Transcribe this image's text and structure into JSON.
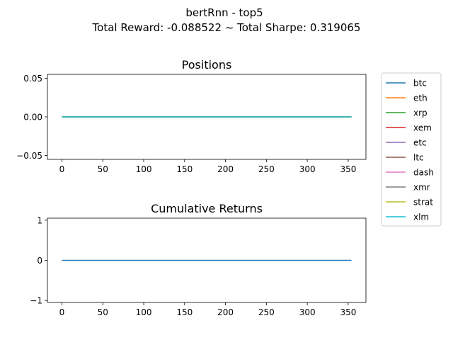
{
  "figure": {
    "title_line1": "bertRnn - top5",
    "title_line2": "Total Reward: -0.088522 ~ Total Sharpe: 0.319065"
  },
  "legend": {
    "placement": "right",
    "items": [
      {
        "name": "btc",
        "color": "#1f77b4"
      },
      {
        "name": "eth",
        "color": "#ff7f0e"
      },
      {
        "name": "xrp",
        "color": "#2ca02c"
      },
      {
        "name": "xem",
        "color": "#d62728"
      },
      {
        "name": "etc",
        "color": "#9467bd"
      },
      {
        "name": "ltc",
        "color": "#8c564b"
      },
      {
        "name": "dash",
        "color": "#e377c2"
      },
      {
        "name": "xmr",
        "color": "#7f7f7f"
      },
      {
        "name": "strat",
        "color": "#bcbd22"
      },
      {
        "name": "xlm",
        "color": "#17becf"
      }
    ]
  },
  "chart_data": [
    {
      "type": "line",
      "title": "Positions",
      "xlabel": "",
      "ylabel": "",
      "xlim": [
        -17.7,
        371.7
      ],
      "ylim": [
        -0.055,
        0.055
      ],
      "x_ticks": [
        0,
        50,
        100,
        150,
        200,
        250,
        300,
        350
      ],
      "x_tick_labels": [
        "0",
        "50",
        "100",
        "150",
        "200",
        "250",
        "300",
        "350"
      ],
      "y_ticks": [
        -0.05,
        0.0,
        0.05
      ],
      "y_tick_labels": [
        "−0.05",
        "0.00",
        "0.05"
      ],
      "grid": false,
      "series": [
        {
          "name": "btc",
          "x": [
            0,
            354
          ],
          "y": [
            0,
            0
          ]
        },
        {
          "name": "eth",
          "x": [
            0,
            354
          ],
          "y": [
            0,
            0
          ]
        },
        {
          "name": "xrp",
          "x": [
            0,
            354
          ],
          "y": [
            0,
            0
          ]
        },
        {
          "name": "xem",
          "x": [
            0,
            354
          ],
          "y": [
            0,
            0
          ]
        },
        {
          "name": "etc",
          "x": [
            0,
            354
          ],
          "y": [
            0,
            0
          ]
        },
        {
          "name": "ltc",
          "x": [
            0,
            354
          ],
          "y": [
            0,
            0
          ]
        },
        {
          "name": "dash",
          "x": [
            0,
            354
          ],
          "y": [
            0,
            0
          ]
        },
        {
          "name": "xmr",
          "x": [
            0,
            354
          ],
          "y": [
            0,
            0
          ]
        },
        {
          "name": "strat",
          "x": [
            0,
            354
          ],
          "y": [
            0,
            0
          ]
        },
        {
          "name": "xlm",
          "x": [
            0,
            354
          ],
          "y": [
            0,
            0
          ]
        }
      ]
    },
    {
      "type": "line",
      "title": "Cumulative Returns",
      "xlabel": "",
      "ylabel": "",
      "xlim": [
        -17.7,
        371.7
      ],
      "ylim": [
        -1.05,
        1.05
      ],
      "x_ticks": [
        0,
        50,
        100,
        150,
        200,
        250,
        300,
        350
      ],
      "x_tick_labels": [
        "0",
        "50",
        "100",
        "150",
        "200",
        "250",
        "300",
        "350"
      ],
      "y_ticks": [
        -1,
        0,
        1
      ],
      "y_tick_labels": [
        "−1",
        "0",
        "1"
      ],
      "grid": false,
      "series": [
        {
          "x": [
            0,
            354
          ],
          "y": [
            0,
            0
          ],
          "color": "#1f77b4"
        }
      ]
    }
  ]
}
